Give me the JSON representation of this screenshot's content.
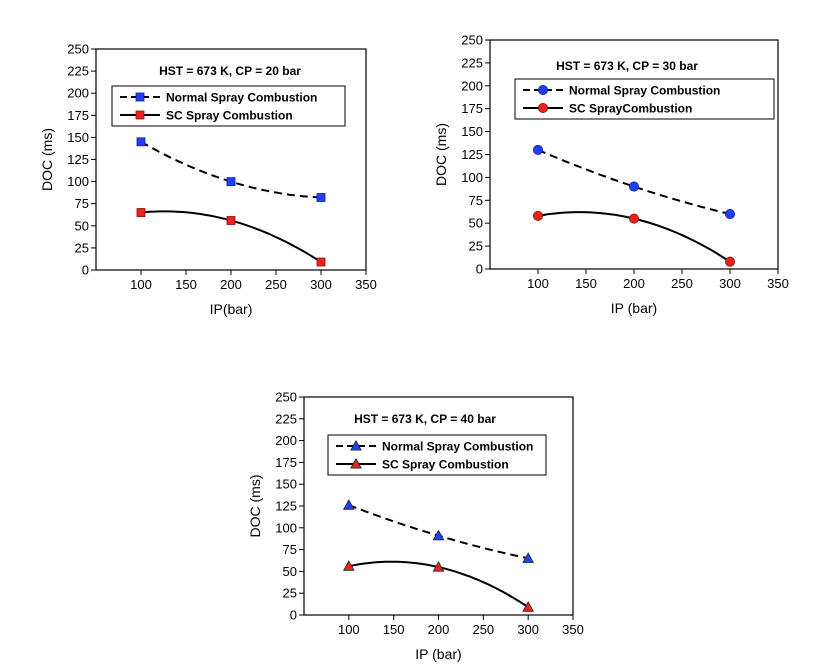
{
  "chart_data": [
    {
      "type": "line",
      "title": "HST = 673 K, CP = 20 bar",
      "xlabel": "IP(bar)",
      "ylabel": "DOC (ms)",
      "xlim": [
        50,
        350
      ],
      "ylim": [
        0,
        250
      ],
      "xticks": [
        100,
        150,
        200,
        250,
        300,
        350
      ],
      "yticks": [
        0,
        25,
        50,
        75,
        100,
        125,
        150,
        175,
        200,
        225,
        250
      ],
      "marker": "square",
      "legend_position": "top-right",
      "series": [
        {
          "name": "Normal Spray Combustion",
          "color": "#1f3fff",
          "line": "dashed",
          "x": [
            100,
            200,
            300
          ],
          "values": [
            145,
            100,
            82
          ]
        },
        {
          "name": "SC Spray Combustion",
          "color": "#e8231e",
          "line": "solid",
          "x": [
            100,
            200,
            300
          ],
          "values": [
            65,
            56,
            9
          ]
        }
      ]
    },
    {
      "type": "line",
      "title": "HST = 673 K, CP = 30 bar",
      "xlabel": "IP (bar)",
      "ylabel": "DOC (ms)",
      "xlim": [
        50,
        350
      ],
      "ylim": [
        0,
        250
      ],
      "xticks": [
        100,
        150,
        200,
        250,
        300,
        350
      ],
      "yticks": [
        0,
        25,
        50,
        75,
        100,
        125,
        150,
        175,
        200,
        225,
        250
      ],
      "marker": "circle",
      "legend_position": "top-right",
      "series": [
        {
          "name": "Normal Spray Combustion",
          "color": "#1f3fff",
          "line": "dashed",
          "x": [
            100,
            200,
            300
          ],
          "values": [
            130,
            90,
            60
          ]
        },
        {
          "name": "SC SprayCombustion",
          "color": "#e8231e",
          "line": "solid",
          "x": [
            100,
            200,
            300
          ],
          "values": [
            58,
            55,
            8
          ]
        }
      ]
    },
    {
      "type": "line",
      "title": "HST = 673 K, CP = 40 bar",
      "xlabel": "IP (bar)",
      "ylabel": "DOC (ms)",
      "xlim": [
        50,
        350
      ],
      "ylim": [
        0,
        250
      ],
      "xticks": [
        100,
        150,
        200,
        250,
        300,
        350
      ],
      "yticks": [
        0,
        25,
        50,
        75,
        100,
        125,
        150,
        175,
        200,
        225,
        250
      ],
      "marker": "triangle",
      "legend_position": "top-right",
      "series": [
        {
          "name": "Normal Spray Combustion",
          "color": "#1f3fff",
          "line": "dashed",
          "x": [
            100,
            200,
            300
          ],
          "values": [
            126,
            91,
            65
          ]
        },
        {
          "name": "SC Spray Combustion",
          "color": "#e8231e",
          "line": "solid",
          "x": [
            100,
            200,
            300
          ],
          "values": [
            56,
            55,
            9
          ]
        }
      ]
    }
  ]
}
